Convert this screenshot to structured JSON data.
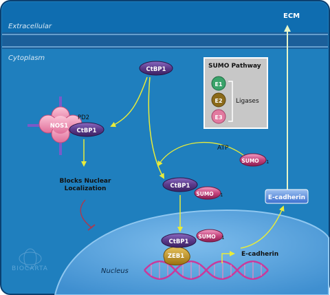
{
  "compartments": {
    "extracellular": "Extracellular",
    "cytoplasm": "Cytoplasm",
    "nucleus": "Nucleus"
  },
  "labels": {
    "ecm": "ECM",
    "sumo_pathway": "SUMO Pathway",
    "ligases": "Ligases",
    "atp": "ATP",
    "blocks_line1": "Blocks Nuclear",
    "blocks_line2": "Localization",
    "pd2": "PD2",
    "e_cadherin_gene": "E-cadherin",
    "watermark": "BIOCARTA"
  },
  "molecules": {
    "ctbp1_top": "CtBP1",
    "nos1": "NOS1",
    "ctbp1_nos": "CtBP1",
    "e1": "E1",
    "e2": "E2",
    "e3": "E3",
    "sumo_free": "SUMO",
    "sumo_free_num": "1",
    "ctbp1_mid": "CtBP1",
    "sumo_mid": "SUMO",
    "sumo_mid_num": "1",
    "ctbp1_nuc": "CtBP1",
    "sumo_nuc": "SUMO",
    "sumo_nuc_num": "1",
    "zeb1": "ZEB1",
    "e_cadherin_protein": "E-cadherin"
  },
  "colors": {
    "cell_fill": "#1f7fbe",
    "extracellular": "#0f6db0",
    "membrane": "#1b5f9a",
    "nucleus_fill": "#5aa6dd",
    "ctbp1": "#5a3a8a",
    "sumo": "#c5447d",
    "nos1": "#f08fb0",
    "zeb1": "#c89a1a",
    "arrow": "#e8ec3a",
    "dna": "#c93a9b",
    "ecad_protein": "#4a7fd6",
    "e1": "#3aa36a",
    "e2": "#8b6a1a",
    "e3": "#e27aa0"
  }
}
